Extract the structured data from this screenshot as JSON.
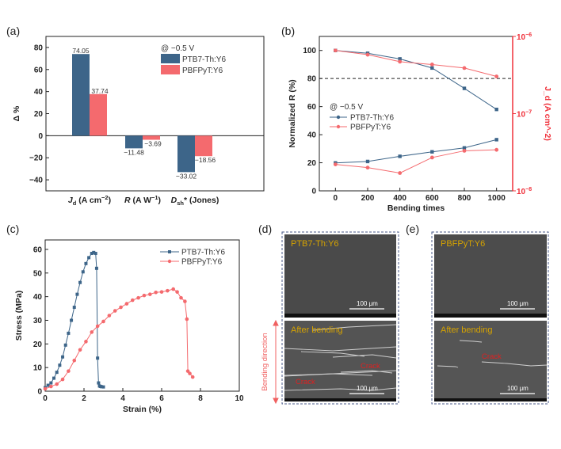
{
  "colors": {
    "ptb7": "#3d6589",
    "pbf": "#f46a6e",
    "axis_right": "#f0303a",
    "sem_label": "#d6a300",
    "crack": "#e02020"
  },
  "chart_data": [
    {
      "panel": "(a)",
      "type": "bar",
      "categories": [
        "J_d (A cm^-2)",
        "R (A W^-1)",
        "D_sh* (Jones)"
      ],
      "category_parts": [
        {
          "main": "J",
          "sub": "d",
          "rest": " (A cm",
          "sup": "−2",
          "end": ")"
        },
        {
          "main": "R",
          "sub": "",
          "rest": " (A W",
          "sup": "−1",
          "end": ")"
        },
        {
          "main": "D",
          "sub": "sh",
          "rest": "* (Jones)",
          "sup": "",
          "end": ""
        }
      ],
      "series": [
        {
          "name": "PTB7-Th:Y6",
          "values": [
            74.05,
            -11.48,
            -33.02
          ],
          "labels": [
            "74.05",
            "−11.48",
            "−33.02"
          ]
        },
        {
          "name": "PBFPyT:Y6",
          "values": [
            37.74,
            -3.69,
            -18.56
          ],
          "labels": [
            "37.74",
            "−3.69",
            "−18.56"
          ]
        }
      ],
      "ylabel": "Δ %",
      "ylim": [
        -50,
        90
      ],
      "yticks": [
        -40,
        -20,
        0,
        20,
        40,
        60,
        80
      ],
      "ytick_labels": [
        "−40",
        "−20",
        "0",
        "20",
        "40",
        "60",
        "80"
      ],
      "legend_title": "@ −0.5 V",
      "legend": "top-right"
    },
    {
      "panel": "(b)",
      "type": "line",
      "x": [
        0,
        200,
        400,
        600,
        800,
        1000
      ],
      "xlabel": "Bending times",
      "xlim": [
        -100,
        1100
      ],
      "xticks": [
        0,
        200,
        400,
        600,
        800,
        1000
      ],
      "ylabel": "Normalized R (%)",
      "ylim": [
        0,
        110
      ],
      "yticks": [
        0,
        20,
        40,
        60,
        80,
        100
      ],
      "y2label": "J_d (A cm^-2)",
      "y2scale": "log",
      "y2lim": [
        1e-08,
        1e-06
      ],
      "y2ticks": [
        "10^-8",
        "10^-7",
        "10^-6"
      ],
      "reference_line": 80,
      "series": [
        {
          "name": "PTB7-Th:Y6",
          "axis": "left",
          "values": [
            100,
            98,
            94,
            87.5,
            73,
            58
          ]
        },
        {
          "name": "PBFPyT:Y6",
          "axis": "left",
          "values": [
            100,
            97,
            92,
            90,
            87.5,
            81.5
          ]
        },
        {
          "name": "PTB7-Th:Y6",
          "axis": "right",
          "values": [
            2.3e-08,
            2.4e-08,
            2.8e-08,
            3.2e-08,
            3.6e-08,
            4.6e-08
          ]
        },
        {
          "name": "PBFPyT:Y6",
          "axis": "right",
          "values": [
            2.2e-08,
            2e-08,
            1.7e-08,
            2.7e-08,
            3.3e-08,
            3.4e-08
          ]
        }
      ],
      "legend_title": "@ −0.5 V",
      "legend": "center-left"
    },
    {
      "panel": "(c)",
      "type": "line",
      "xlabel": "Strain (%)",
      "ylabel": "Stress (MPa)",
      "xlim": [
        0,
        10
      ],
      "ylim": [
        0,
        64
      ],
      "xticks": [
        0,
        2,
        4,
        6,
        8,
        10
      ],
      "yticks": [
        0,
        10,
        20,
        30,
        40,
        50,
        60
      ],
      "legend": "top-right",
      "series": [
        {
          "name": "PTB7-Th:Y6",
          "x": [
            0,
            0.15,
            0.3,
            0.45,
            0.6,
            0.75,
            0.9,
            1.05,
            1.2,
            1.35,
            1.5,
            1.65,
            1.8,
            1.95,
            2.1,
            2.25,
            2.4,
            2.5,
            2.6,
            2.65,
            2.7,
            2.75,
            2.8,
            2.85,
            2.9,
            3.0
          ],
          "y": [
            1.5,
            2.5,
            3.5,
            5.5,
            8,
            11,
            14.5,
            19.5,
            24.5,
            30,
            35.5,
            41,
            46,
            50.5,
            54,
            56.5,
            58.3,
            58.7,
            58.3,
            52,
            14,
            3.5,
            2.2,
            2,
            1.9,
            1.8
          ]
        },
        {
          "name": "PBFPyT:Y6",
          "x": [
            0,
            0.3,
            0.6,
            0.9,
            1.2,
            1.5,
            1.8,
            2.1,
            2.4,
            2.7,
            3.0,
            3.3,
            3.6,
            3.9,
            4.2,
            4.5,
            4.8,
            5.1,
            5.4,
            5.7,
            6.0,
            6.3,
            6.6,
            6.8,
            7.0,
            7.2,
            7.3,
            7.35,
            7.45,
            7.6
          ],
          "y": [
            1,
            2,
            3,
            5,
            8.5,
            13,
            17.5,
            21,
            25,
            27.5,
            29.5,
            32,
            34,
            35.5,
            37,
            38.5,
            39.5,
            40.5,
            41,
            41.8,
            42,
            42.5,
            43.2,
            42,
            39.5,
            38,
            30.5,
            8.5,
            7.5,
            6
          ]
        }
      ]
    }
  ],
  "panels": {
    "a": "(a)",
    "b": "(b)",
    "c": "(c)",
    "d": "(d)",
    "e": "(e)"
  },
  "sem": {
    "d_top_label": "PTB7-Th:Y6",
    "e_top_label": "PBFPyT:Y6",
    "after_label": "After bending",
    "crack_label": "Crack",
    "scale_bar": "100 μm",
    "bending_direction": "Bending direction"
  }
}
